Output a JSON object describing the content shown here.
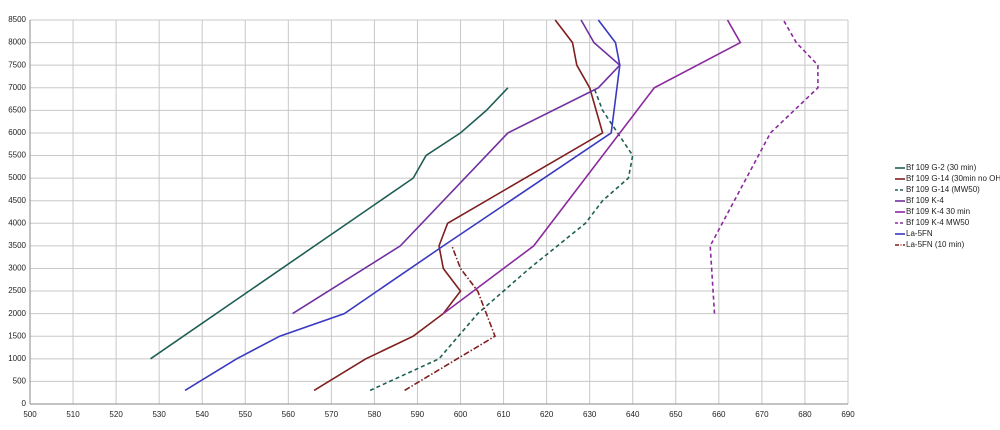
{
  "chart_data": {
    "type": "line",
    "grid": true,
    "legend": "right",
    "xlim": [
      500,
      690
    ],
    "xticks": [
      500,
      510,
      520,
      530,
      540,
      550,
      560,
      570,
      580,
      590,
      600,
      610,
      620,
      630,
      640,
      650,
      660,
      670,
      680,
      690
    ],
    "ylim": [
      0,
      8500
    ],
    "yticks": [
      0,
      500,
      1000,
      1500,
      2000,
      2500,
      3000,
      3500,
      4000,
      4500,
      5000,
      5500,
      6000,
      6500,
      7000,
      7500,
      8000,
      8500
    ],
    "series": [
      {
        "name": "Bf 109 G-2 (30 min)",
        "color": "#1f5f55",
        "dash": "solid",
        "x": [
          528,
          589,
          592,
          600,
          606,
          611
        ],
        "values": [
          1000,
          5000,
          5500,
          6000,
          6500,
          7000
        ]
      },
      {
        "name": "Bf 109 G-14 (30min no OH)",
        "color": "#7f1f1f",
        "dash": "solid",
        "x": [
          566,
          578,
          589,
          596,
          600,
          596,
          595,
          597,
          633,
          630,
          627,
          626,
          622
        ],
        "values": [
          300,
          1000,
          1500,
          2000,
          2500,
          3000,
          3500,
          4000,
          6000,
          7000,
          7500,
          8000,
          8500
        ]
      },
      {
        "name": "Bf 109 G-14 (MW50)",
        "color": "#1f5f55",
        "dash": "dashed",
        "x": [
          579,
          595,
          604,
          616,
          629,
          633,
          639,
          640,
          633,
          631
        ],
        "values": [
          300,
          1000,
          2000,
          3000,
          4000,
          4500,
          5000,
          5500,
          6500,
          7000
        ]
      },
      {
        "name": "Bf 109 K-4",
        "color": "#7030a0",
        "dash": "solid",
        "x": [
          561,
          586,
          611,
          632,
          637,
          631,
          628
        ],
        "values": [
          2000,
          3500,
          6000,
          7000,
          7500,
          8000,
          8500
        ]
      },
      {
        "name": "Bf 109 K-4 30 min",
        "color": "#8b2a9e",
        "dash": "solid",
        "x": [
          596,
          617,
          645,
          665,
          662
        ],
        "values": [
          2000,
          3500,
          7000,
          8000,
          8500
        ]
      },
      {
        "name": "Bf 109 K-4 MW50",
        "color": "#8b2a9e",
        "dash": "dashed",
        "x": [
          659,
          658,
          672,
          683,
          683,
          678,
          675
        ],
        "values": [
          2000,
          3500,
          6000,
          7000,
          7500,
          8000,
          8500
        ]
      },
      {
        "name": "La-5FN",
        "color": "#3a3ac0",
        "dash": "solid",
        "x": [
          536,
          548,
          558,
          573,
          596,
          635,
          637,
          636,
          632
        ],
        "values": [
          300,
          1000,
          1500,
          2000,
          3500,
          6000,
          7500,
          8000,
          8500
        ]
      },
      {
        "name": "La-5FN (10 min)",
        "color": "#7f1f1f",
        "dash": "dashdot",
        "x": [
          587,
          608,
          604,
          600,
          598
        ],
        "values": [
          300,
          1500,
          2500,
          3000,
          3500
        ]
      }
    ]
  }
}
